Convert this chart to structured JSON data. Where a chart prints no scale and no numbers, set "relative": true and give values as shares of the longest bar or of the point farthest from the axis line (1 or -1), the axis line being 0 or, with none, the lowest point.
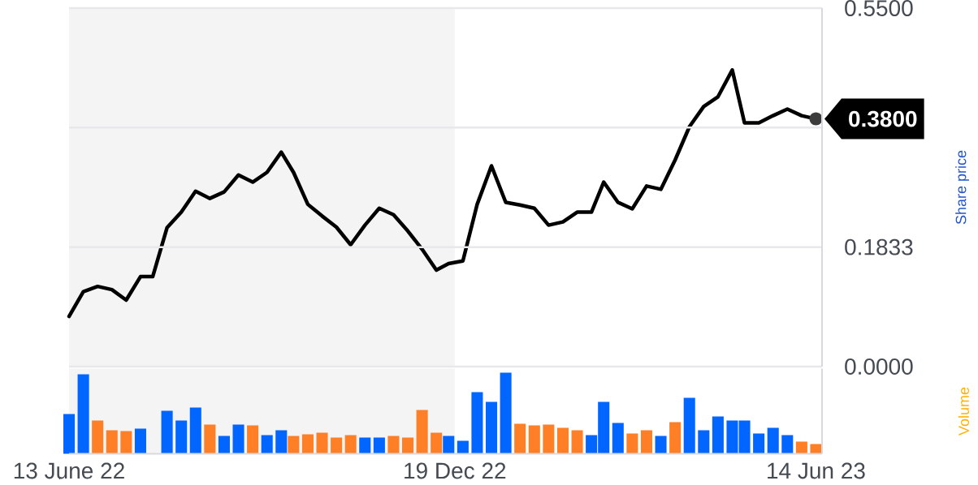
{
  "chart_data": [
    {
      "type": "line",
      "ylabel": "Share price",
      "x": [
        "2022-06-13",
        "2022-06-20",
        "2022-06-27",
        "2022-07-04",
        "2022-07-11",
        "2022-07-18",
        "2022-07-24",
        "2022-07-31",
        "2022-08-07",
        "2022-08-14",
        "2022-08-21",
        "2022-08-28",
        "2022-09-04",
        "2022-09-11",
        "2022-09-18",
        "2022-09-25",
        "2022-10-01",
        "2022-10-08",
        "2022-10-15",
        "2022-10-22",
        "2022-10-29",
        "2022-11-05",
        "2022-11-12",
        "2022-11-19",
        "2022-11-26",
        "2022-12-03",
        "2022-12-10",
        "2022-12-16",
        "2022-12-23",
        "2022-12-30",
        "2023-01-06",
        "2023-01-13",
        "2023-01-20",
        "2023-01-27",
        "2023-02-03",
        "2023-02-10",
        "2023-02-17",
        "2023-02-24",
        "2023-03-02",
        "2023-03-09",
        "2023-03-16",
        "2023-03-23",
        "2023-03-30",
        "2023-04-06",
        "2023-04-13",
        "2023-04-20",
        "2023-04-27",
        "2023-05-04",
        "2023-05-10",
        "2023-05-17",
        "2023-05-24",
        "2023-05-31",
        "2023-06-07",
        "2023-06-14"
      ],
      "series": [
        {
          "color": "#000000",
          "values": [
            0.077,
            0.115,
            0.123,
            0.118,
            0.102,
            0.138,
            0.138,
            0.213,
            0.237,
            0.269,
            0.258,
            0.268,
            0.294,
            0.283,
            0.298,
            0.329,
            0.298,
            0.249,
            0.231,
            0.214,
            0.187,
            0.217,
            0.243,
            0.233,
            0.208,
            0.18,
            0.148,
            0.158,
            0.162,
            0.249,
            0.308,
            0.252,
            0.248,
            0.243,
            0.217,
            0.222,
            0.237,
            0.237,
            0.283,
            0.252,
            0.242,
            0.277,
            0.272,
            0.317,
            0.368,
            0.399,
            0.414,
            0.455,
            0.374,
            0.374,
            0.385,
            0.395,
            0.385,
            0.38
          ]
        }
      ],
      "xlim": [
        "2022-06-13",
        "2023-06-17"
      ],
      "ylim": [
        0,
        0.55
      ],
      "yticks": [
        {
          "value": 0,
          "label": "0.0000"
        },
        0.1833,
        {
          "value": 0.3667,
          "label": null
        },
        {
          "value": 0.55,
          "label": "0.5500"
        }
      ],
      "grid": "y",
      "tick_labels": "y",
      "bands": [
        {
          "axis": "x",
          "from": "2022-06-13",
          "to": "2022-12-19",
          "color": "#f4f4f5"
        }
      ],
      "annotations": [
        {
          "text": "0.3800",
          "x": "2023-06-14",
          "y": 0.38
        }
      ]
    },
    {
      "type": "bar",
      "ylabel": "Volume",
      "relative": true,
      "x": [
        "2022-06-13",
        "2022-06-20",
        "2022-06-27",
        "2022-07-04",
        "2022-07-11",
        "2022-07-18",
        "2022-07-24",
        "2022-07-31",
        "2022-08-07",
        "2022-08-14",
        "2022-08-21",
        "2022-08-28",
        "2022-09-04",
        "2022-09-11",
        "2022-09-18",
        "2022-09-25",
        "2022-10-01",
        "2022-10-08",
        "2022-10-15",
        "2022-10-22",
        "2022-10-29",
        "2022-11-05",
        "2022-11-12",
        "2022-11-19",
        "2022-11-26",
        "2022-12-03",
        "2022-12-10",
        "2022-12-16",
        "2022-12-23",
        "2022-12-30",
        "2023-01-06",
        "2023-01-13",
        "2023-01-20",
        "2023-01-27",
        "2023-02-03",
        "2023-02-10",
        "2023-02-17",
        "2023-02-24",
        "2023-03-02",
        "2023-03-09",
        "2023-03-16",
        "2023-03-23",
        "2023-03-30",
        "2023-04-06",
        "2023-04-13",
        "2023-04-20",
        "2023-04-27",
        "2023-05-04",
        "2023-05-10",
        "2023-05-17",
        "2023-05-24",
        "2023-05-31",
        "2023-06-07",
        "2023-06-14"
      ],
      "values": [
        0.49,
        0.98,
        0.41,
        0.29,
        0.28,
        0.31,
        null,
        0.53,
        0.41,
        0.57,
        0.36,
        0.22,
        0.36,
        0.35,
        0.23,
        0.29,
        0.22,
        0.24,
        0.26,
        0.2,
        0.23,
        0.2,
        0.2,
        0.22,
        0.2,
        0.54,
        0.26,
        0.22,
        0.16,
        0.76,
        0.64,
        1,
        0.37,
        0.35,
        0.36,
        0.32,
        0.29,
        0.23,
        0.64,
        0.38,
        0.25,
        0.29,
        0.22,
        0.39,
        0.69,
        0.29,
        0.46,
        0.41,
        0.41,
        0.25,
        0.32,
        0.23,
        0.15,
        0.12
      ],
      "colors": [
        "#0066ff",
        "#0066ff",
        "#ff7f27",
        "#ff7f27",
        "#ff7f27",
        "#0066ff",
        "#0066ff",
        "#0066ff",
        "#0066ff",
        "#0066ff",
        "#ff7f27",
        "#0066ff",
        "#0066ff",
        "#ff7f27",
        "#0066ff",
        "#0066ff",
        "#ff7f27",
        "#ff7f27",
        "#ff7f27",
        "#ff7f27",
        "#ff7f27",
        "#0066ff",
        "#0066ff",
        "#ff7f27",
        "#ff7f27",
        "#ff7f27",
        "#ff7f27",
        "#0066ff",
        "#0066ff",
        "#0066ff",
        "#0066ff",
        "#0066ff",
        "#ff7f27",
        "#ff7f27",
        "#ff7f27",
        "#ff7f27",
        "#ff7f27",
        "#0066ff",
        "#0066ff",
        "#0066ff",
        "#ff7f27",
        "#ff7f27",
        "#0066ff",
        "#ff7f27",
        "#0066ff",
        "#0066ff",
        "#0066ff",
        "#0066ff",
        "#0066ff",
        "#0066ff",
        "#0066ff",
        "#0066ff",
        "#ff7f27",
        "#ff7f27"
      ],
      "xlim": [
        "2022-06-13",
        "2023-06-17"
      ],
      "xticks": [
        {
          "value": "2022-06-13",
          "label": "13 June 22"
        },
        {
          "value": "2022-12-19",
          "label": "19 Dec 22"
        },
        {
          "value": "2023-06-14",
          "label": "14 Jun 23"
        }
      ],
      "tick_labels": "x",
      "bands": [
        {
          "axis": "x",
          "from": "2022-06-13",
          "to": "2022-12-19",
          "color": "#f4f4f5"
        }
      ]
    }
  ]
}
